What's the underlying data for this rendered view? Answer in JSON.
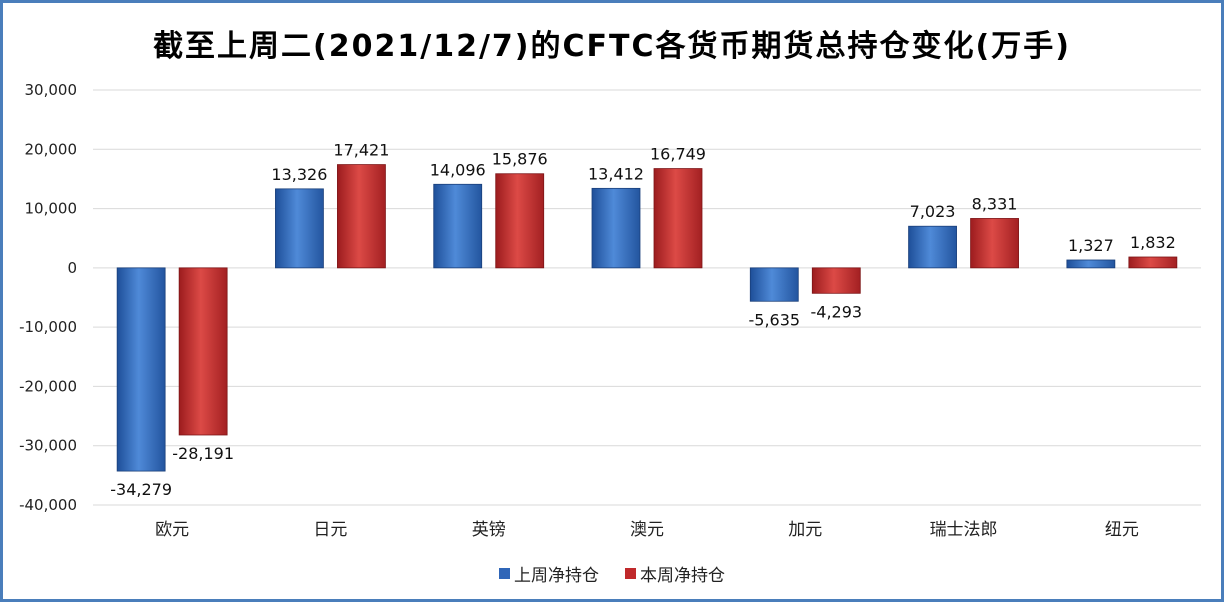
{
  "chart_data": {
    "type": "bar",
    "title": "截至上周二(2021/12/7)的CFTC各货币期货总持仓变化(万手)",
    "categories": [
      "欧元",
      "日元",
      "英镑",
      "澳元",
      "加元",
      "瑞士法郎",
      "纽元"
    ],
    "series": [
      {
        "name": "上周净持仓",
        "color": "#2f66b8",
        "values": [
          -34279,
          13326,
          14096,
          13412,
          -5635,
          7023,
          1327
        ],
        "labels": [
          "-34,279",
          "13,326",
          "14,096",
          "13,412",
          "-5,635",
          "7,023",
          "1,327"
        ]
      },
      {
        "name": "本周净持仓",
        "color": "#c0292b",
        "values": [
          -28191,
          17421,
          15876,
          16749,
          -4293,
          8331,
          1832
        ],
        "labels": [
          "-28,191",
          "17,421",
          "15,876",
          "16,749",
          "-4,293",
          "8,331",
          "1,832"
        ]
      }
    ],
    "ylim": [
      -40000,
      30000
    ],
    "yticks": [
      30000,
      20000,
      10000,
      0,
      -10000,
      -20000,
      -30000,
      -40000
    ],
    "ytick_labels": [
      "30,000",
      "20,000",
      "10,000",
      "0",
      "-10,000",
      "-20,000",
      "-30,000",
      "-40,000"
    ],
    "grid": true,
    "legend_position": "bottom"
  }
}
